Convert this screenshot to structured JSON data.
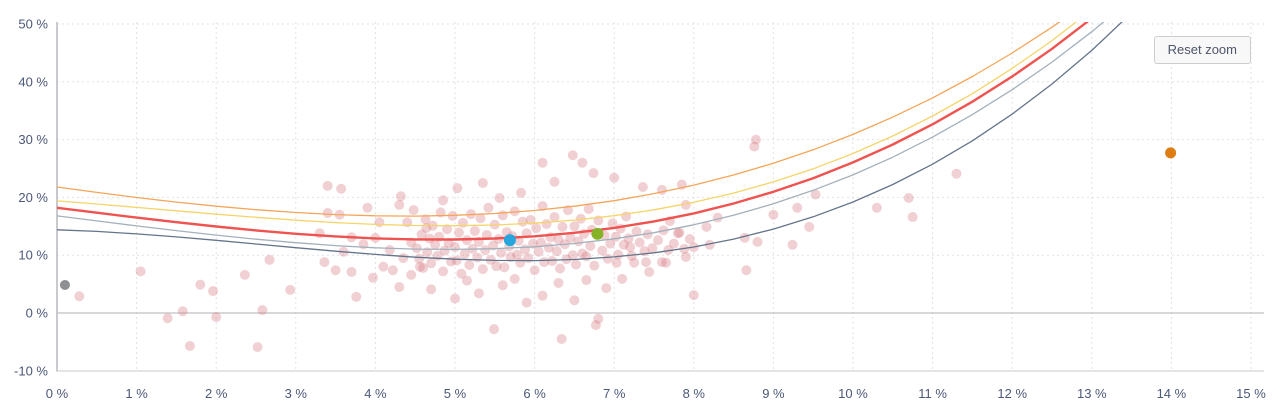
{
  "toolbar": {
    "reset_zoom_label": "Reset zoom"
  },
  "colors": {
    "background": "#ffffff",
    "grid": "#e2e2e6",
    "axis": "#c9c9ce",
    "zero_line": "#b2b2b6",
    "tick_label": "#4c5878",
    "scatter": "rgba(214,120,130,0.35)",
    "curve_upper_outer": "#f5a55a",
    "curve_upper_inner": "#f6d469",
    "curve_median": "#ef5350",
    "curve_lower_inner": "#a3b1bc",
    "curve_lower_outer": "#64748b",
    "point_gray": "#8f9094",
    "point_blue": "#27a6de",
    "point_green": "#85b226",
    "point_orange": "#de7d12"
  },
  "chart_data": {
    "type": "scatter",
    "title": "",
    "xlabel": "",
    "ylabel": "",
    "grid": "dashed",
    "legend": "none",
    "x_axis": {
      "min": 0,
      "max": 15.2,
      "tick_values": [
        0,
        1,
        2,
        3,
        4,
        5,
        6,
        7,
        8,
        9,
        10,
        11,
        12,
        13,
        14,
        15
      ],
      "tick_labels": [
        "0 %",
        "1 %",
        "2 %",
        "3 %",
        "4 %",
        "5 %",
        "6 %",
        "7 %",
        "8 %",
        "9 %",
        "10 %",
        "11 %",
        "12 %",
        "13 %",
        "14 %",
        "15 %"
      ]
    },
    "y_axis": {
      "min": -10,
      "max": 50.3,
      "tick_values": [
        50,
        40,
        30,
        20,
        10,
        0,
        -10
      ],
      "tick_labels": [
        "50 %",
        "40 %",
        "30 %",
        "20 %",
        "10 %",
        "0 %",
        "-10 %"
      ],
      "dashed_grid_values": [
        50,
        40,
        30,
        20,
        10
      ],
      "zero_line_value": 0
    },
    "series": [
      {
        "name": "observations",
        "type": "scatter",
        "color": "rgba(214,120,130,0.35)",
        "radius": 5,
        "points": [
          [
            0.28,
            2.9
          ],
          [
            1.05,
            7.2
          ],
          [
            1.39,
            -0.9
          ],
          [
            1.58,
            0.3
          ],
          [
            1.67,
            -5.7
          ],
          [
            1.8,
            4.9
          ],
          [
            1.96,
            3.8
          ],
          [
            2.0,
            -0.7
          ],
          [
            2.36,
            6.6
          ],
          [
            2.52,
            -5.9
          ],
          [
            2.58,
            0.5
          ],
          [
            2.67,
            9.2
          ],
          [
            2.93,
            4.0
          ],
          [
            3.4,
            17.3
          ],
          [
            3.55,
            17.0
          ],
          [
            3.9,
            18.2
          ],
          [
            4.3,
            18.7
          ],
          [
            4.05,
            15.7
          ],
          [
            4.4,
            15.7
          ],
          [
            4.64,
            14.7
          ],
          [
            3.7,
            13.1
          ],
          [
            3.6,
            10.6
          ],
          [
            3.36,
            8.8
          ],
          [
            3.5,
            7.4
          ],
          [
            3.7,
            7.1
          ],
          [
            3.97,
            6.1
          ],
          [
            4.1,
            8.0
          ],
          [
            4.18,
            10.9
          ],
          [
            4.22,
            7.4
          ],
          [
            4.3,
            4.5
          ],
          [
            4.45,
            6.6
          ],
          [
            4.56,
            8.0
          ],
          [
            3.76,
            2.8
          ],
          [
            3.3,
            13.8
          ],
          [
            3.85,
            11.9
          ],
          [
            4.0,
            13.0
          ],
          [
            4.35,
            9.5
          ],
          [
            4.45,
            12.2
          ],
          [
            4.48,
            17.8
          ],
          [
            4.32,
            20.2
          ],
          [
            5.03,
            21.6
          ],
          [
            5.35,
            22.5
          ],
          [
            3.4,
            22.0
          ],
          [
            3.57,
            21.5
          ],
          [
            4.85,
            19.5
          ],
          [
            6.1,
            26.0
          ],
          [
            6.48,
            27.3
          ],
          [
            6.6,
            26.0
          ],
          [
            6.25,
            22.7
          ],
          [
            6.74,
            24.2
          ],
          [
            7.0,
            23.4
          ],
          [
            7.36,
            21.8
          ],
          [
            7.6,
            21.3
          ],
          [
            5.83,
            20.8
          ],
          [
            5.56,
            19.9
          ],
          [
            8.78,
            30.0
          ],
          [
            8.76,
            28.8
          ],
          [
            7.85,
            22.2
          ],
          [
            7.03,
            8.7
          ],
          [
            7.2,
            11.4
          ],
          [
            7.25,
            8.7
          ],
          [
            7.4,
            8.8
          ],
          [
            7.44,
            7.1
          ],
          [
            7.6,
            8.8
          ],
          [
            7.65,
            8.7
          ],
          [
            7.8,
            13.8
          ],
          [
            7.9,
            9.7
          ],
          [
            7.9,
            18.7
          ],
          [
            8.0,
            11.4
          ],
          [
            8.16,
            14.9
          ],
          [
            8.2,
            11.8
          ],
          [
            8.64,
            13.0
          ],
          [
            8.8,
            12.3
          ],
          [
            8.66,
            7.4
          ],
          [
            8.0,
            3.1
          ],
          [
            9.24,
            11.8
          ],
          [
            7.7,
            15.9
          ],
          [
            8.3,
            16.5
          ],
          [
            9.3,
            18.2
          ],
          [
            9.53,
            20.5
          ],
          [
            10.3,
            18.2
          ],
          [
            10.7,
            19.9
          ],
          [
            10.75,
            16.6
          ],
          [
            11.3,
            24.1
          ],
          [
            9.0,
            17.0
          ],
          [
            9.45,
            14.9
          ],
          [
            5.49,
            -2.8
          ],
          [
            6.34,
            -4.5
          ],
          [
            6.77,
            -2.1
          ],
          [
            6.8,
            -1.0
          ],
          [
            5.0,
            2.5
          ],
          [
            5.3,
            3.4
          ],
          [
            5.9,
            1.8
          ],
          [
            6.1,
            3.0
          ],
          [
            6.5,
            2.2
          ],
          [
            4.7,
            4.1
          ],
          [
            5.6,
            4.8
          ],
          [
            6.9,
            4.3
          ],
          [
            7.1,
            5.9
          ],
          [
            6.3,
            5.2
          ],
          [
            5.15,
            5.6
          ],
          [
            5.75,
            5.9
          ],
          [
            6.65,
            5.7
          ],
          [
            4.52,
            11.2
          ],
          [
            4.55,
            9.4
          ],
          [
            4.58,
            13.6
          ],
          [
            4.6,
            7.8
          ],
          [
            4.63,
            16.2
          ],
          [
            4.65,
            10.5
          ],
          [
            4.68,
            12.9
          ],
          [
            4.7,
            8.6
          ],
          [
            4.72,
            15.1
          ],
          [
            4.75,
            11.8
          ],
          [
            4.78,
            9.9
          ],
          [
            4.8,
            13.2
          ],
          [
            4.82,
            17.4
          ],
          [
            4.85,
            7.2
          ],
          [
            4.87,
            10.8
          ],
          [
            4.9,
            14.5
          ],
          [
            4.92,
            12.1
          ],
          [
            4.95,
            8.9
          ],
          [
            4.97,
            16.8
          ],
          [
            5.0,
            11.4
          ],
          [
            5.02,
            9.1
          ],
          [
            5.05,
            13.9
          ],
          [
            5.08,
            6.8
          ],
          [
            5.1,
            15.6
          ],
          [
            5.12,
            10.2
          ],
          [
            5.15,
            12.6
          ],
          [
            5.18,
            8.3
          ],
          [
            5.2,
            17.1
          ],
          [
            5.22,
            11.1
          ],
          [
            5.25,
            14.2
          ],
          [
            5.28,
            9.6
          ],
          [
            5.3,
            12.3
          ],
          [
            5.32,
            16.4
          ],
          [
            5.35,
            7.6
          ],
          [
            5.38,
            10.9
          ],
          [
            5.4,
            13.5
          ],
          [
            5.42,
            18.2
          ],
          [
            5.45,
            9.2
          ],
          [
            5.48,
            11.7
          ],
          [
            5.5,
            15.3
          ],
          [
            5.52,
            8.1
          ],
          [
            5.55,
            12.8
          ],
          [
            5.58,
            10.4
          ],
          [
            5.6,
            16.9
          ],
          [
            5.62,
            7.9
          ],
          [
            5.65,
            14.0
          ],
          [
            5.68,
            11.5
          ],
          [
            5.7,
            9.7
          ],
          [
            5.72,
            13.3
          ],
          [
            5.75,
            17.6
          ],
          [
            5.78,
            10.1
          ],
          [
            5.8,
            12.5
          ],
          [
            5.82,
            8.7
          ],
          [
            5.85,
            15.8
          ],
          [
            5.88,
            11.0
          ],
          [
            5.9,
            13.8
          ],
          [
            5.92,
            9.5
          ],
          [
            5.95,
            16.1
          ],
          [
            5.98,
            12.0
          ],
          [
            6.0,
            7.4
          ],
          [
            6.02,
            14.7
          ],
          [
            6.05,
            10.6
          ],
          [
            6.08,
            12.2
          ],
          [
            6.1,
            18.5
          ],
          [
            6.12,
            8.8
          ],
          [
            6.15,
            15.4
          ],
          [
            6.18,
            11.3
          ],
          [
            6.2,
            13.1
          ],
          [
            6.22,
            9.0
          ],
          [
            6.25,
            16.6
          ],
          [
            6.28,
            10.7
          ],
          [
            6.3,
            12.7
          ],
          [
            6.32,
            7.7
          ],
          [
            6.35,
            14.9
          ],
          [
            6.38,
            11.9
          ],
          [
            6.4,
            9.3
          ],
          [
            6.42,
            17.8
          ],
          [
            6.45,
            13.0
          ],
          [
            6.48,
            10.0
          ],
          [
            6.5,
            15.0
          ],
          [
            6.52,
            8.4
          ],
          [
            6.55,
            12.4
          ],
          [
            6.58,
            16.3
          ],
          [
            6.6,
            10.3
          ],
          [
            6.62,
            13.7
          ],
          [
            6.65,
            9.8
          ],
          [
            6.68,
            18.0
          ],
          [
            6.7,
            11.6
          ],
          [
            6.72,
            14.4
          ],
          [
            6.75,
            8.2
          ],
          [
            6.8,
            16.0
          ],
          [
            6.85,
            10.8
          ],
          [
            6.88,
            13.4
          ],
          [
            6.92,
            9.4
          ],
          [
            6.95,
            12.0
          ],
          [
            6.98,
            15.5
          ],
          [
            7.02,
            13.2
          ],
          [
            7.05,
            10.1
          ],
          [
            7.08,
            14.6
          ],
          [
            7.12,
            11.8
          ],
          [
            7.15,
            16.7
          ],
          [
            7.18,
            12.9
          ],
          [
            7.22,
            9.9
          ],
          [
            7.28,
            14.1
          ],
          [
            7.32,
            12.2
          ],
          [
            7.38,
            10.7
          ],
          [
            7.42,
            13.6
          ],
          [
            7.48,
            11.2
          ],
          [
            7.55,
            12.6
          ],
          [
            7.62,
            14.3
          ],
          [
            7.68,
            10.9
          ],
          [
            7.75,
            12.0
          ],
          [
            7.82,
            13.9
          ],
          [
            7.88,
            11.1
          ],
          [
            7.95,
            12.8
          ]
        ]
      },
      {
        "name": "highlight-gray",
        "type": "scatter",
        "color": "#8f9094",
        "radius": 5,
        "points": [
          [
            0.1,
            4.85
          ]
        ]
      },
      {
        "name": "highlight-blue",
        "type": "scatter",
        "color": "#27a6de",
        "radius": 6,
        "points": [
          [
            5.69,
            12.6
          ]
        ]
      },
      {
        "name": "highlight-green",
        "type": "scatter",
        "color": "#85b226",
        "radius": 6,
        "points": [
          [
            6.79,
            13.7
          ]
        ]
      },
      {
        "name": "highlight-orange",
        "type": "scatter",
        "color": "#de7d12",
        "radius": 5.5,
        "points": [
          [
            13.99,
            27.7
          ]
        ]
      }
    ],
    "curves": [
      {
        "name": "upper-band-outer",
        "color": "#f5a55a",
        "width": 1.3,
        "x_start": 0,
        "x_step": 0.5,
        "y": [
          21.8,
          20.87,
          19.99,
          19.19,
          18.48,
          17.88,
          17.39,
          17.03,
          16.82,
          16.77,
          16.9,
          17.21,
          17.73,
          18.47,
          19.43,
          20.65,
          22.12,
          23.87,
          25.9,
          28.24,
          30.9,
          33.89,
          37.22,
          40.92,
          44.98,
          49.44,
          54.3,
          59.58,
          65.29
        ]
      },
      {
        "name": "upper-band-inner",
        "color": "#f6d469",
        "width": 1.3,
        "x_start": 0,
        "x_step": 0.5,
        "y": [
          19.4,
          18.85,
          18.27,
          17.68,
          17.09,
          16.55,
          16.06,
          15.64,
          15.33,
          15.14,
          15.1,
          15.23,
          15.54,
          16.07,
          16.83,
          17.85,
          19.15,
          20.75,
          22.68,
          24.95,
          27.6,
          30.62,
          34.08,
          37.94,
          42.31,
          47.13,
          52.46,
          58.32,
          64.71
        ]
      },
      {
        "name": "fit-median",
        "color": "#ef5350",
        "width": 2.4,
        "x_start": 0,
        "x_step": 0.5,
        "y": [
          18.2,
          17.35,
          16.51,
          15.71,
          14.96,
          14.29,
          13.71,
          13.25,
          12.91,
          12.73,
          12.71,
          12.89,
          13.27,
          13.87,
          14.73,
          15.84,
          17.24,
          18.94,
          20.97,
          23.33,
          26.05,
          29.15,
          32.65,
          36.56,
          40.91,
          45.71,
          50.98,
          56.75,
          63.03
        ]
      },
      {
        "name": "lower-band-inner",
        "color": "#a3b1bc",
        "width": 1.3,
        "x_start": 0,
        "x_step": 0.5,
        "y": [
          16.8,
          15.93,
          15.07,
          14.25,
          13.47,
          12.77,
          12.16,
          11.66,
          11.28,
          11.06,
          11.0,
          11.13,
          11.46,
          12.03,
          12.83,
          13.9,
          15.26,
          16.91,
          18.9,
          21.22,
          23.9,
          26.96,
          30.43,
          34.32,
          38.63,
          43.41,
          48.67,
          54.42,
          60.69
        ]
      },
      {
        "name": "lower-band-outer",
        "color": "#64748b",
        "width": 1.3,
        "x_start": 0,
        "x_step": 0.5,
        "y": [
          14.4,
          14.11,
          13.69,
          13.17,
          12.58,
          11.94,
          11.3,
          10.69,
          10.13,
          9.65,
          9.3,
          9.1,
          9.07,
          9.26,
          9.7,
          10.41,
          11.42,
          12.78,
          14.51,
          16.64,
          19.2,
          22.23,
          25.75,
          29.8,
          34.42,
          39.62,
          45.44,
          51.93,
          59.09
        ]
      }
    ]
  }
}
